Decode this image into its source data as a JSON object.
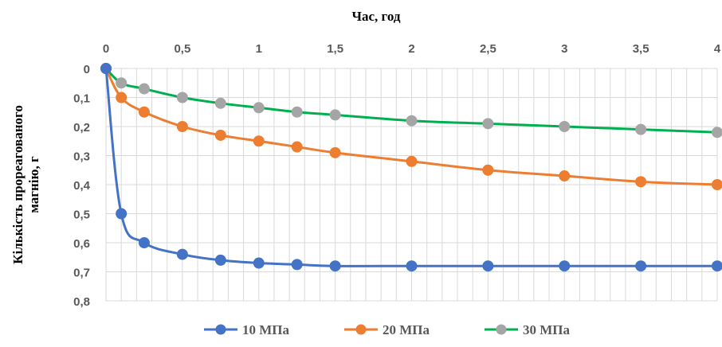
{
  "chart_data": {
    "type": "line",
    "title": "",
    "xlabel": "Час, год",
    "ylabel_line1": "Кількість прореагованого",
    "ylabel_line2": "магнію, г",
    "x_axis_position": "top",
    "y_axis_reversed": true,
    "xlim": [
      0,
      4
    ],
    "ylim": [
      0,
      0.8
    ],
    "x_ticks": [
      0,
      0.5,
      1,
      1.5,
      2,
      2.5,
      3,
      3.5,
      4
    ],
    "x_tick_labels": [
      "0",
      "0,5",
      "1",
      "1,5",
      "2",
      "2,5",
      "3",
      "3,5",
      "4"
    ],
    "y_ticks": [
      0,
      0.1,
      0.2,
      0.3,
      0.4,
      0.5,
      0.6,
      0.7,
      0.8
    ],
    "y_tick_labels": [
      "0",
      "0,1",
      "0,2",
      "0,3",
      "0,4",
      "0,5",
      "0,6",
      "0,7",
      "0,8"
    ],
    "grid": true,
    "legend_position": "bottom",
    "x": [
      0,
      0.1,
      0.25,
      0.5,
      0.75,
      1,
      1.25,
      1.5,
      2,
      2.5,
      3,
      3.5,
      4
    ],
    "series": [
      {
        "name": "10 МПа",
        "color": "#4472C4",
        "values": [
          0,
          0.5,
          0.6,
          0.64,
          0.66,
          0.67,
          0.675,
          0.68,
          0.68,
          0.68,
          0.68,
          0.68,
          0.68
        ]
      },
      {
        "name": "20 МПа",
        "color": "#ED7D31",
        "values": [
          0,
          0.1,
          0.15,
          0.2,
          0.23,
          0.25,
          0.27,
          0.29,
          0.32,
          0.35,
          0.37,
          0.39,
          0.4
        ]
      },
      {
        "name": "30 МПа",
        "color": "#00B050",
        "marker_color": "#A5A5A5",
        "values": [
          0,
          0.05,
          0.07,
          0.1,
          0.12,
          0.135,
          0.15,
          0.16,
          0.18,
          0.19,
          0.2,
          0.21,
          0.22
        ]
      }
    ]
  }
}
